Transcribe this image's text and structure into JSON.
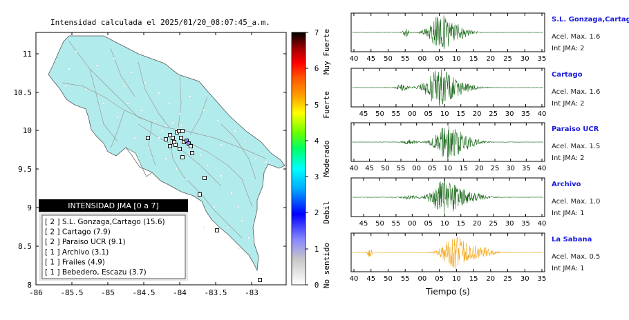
{
  "map": {
    "title": "Intensidad calculada el 2025/01/20_08:07:45_a.m.",
    "x_ticks": [
      "-86",
      "-85.5",
      "-85",
      "-84.5",
      "-84",
      "-83.5",
      "-83"
    ],
    "y_ticks": [
      "11",
      "10.5",
      "10",
      "9.5",
      "9",
      "8.5",
      "8"
    ],
    "legend_title": "INTENSIDAD JMA [0 a 7]",
    "legend_rows": [
      "[ 2 ] S.L. Gonzaga,Cartago (15.6)",
      "[ 2 ] Cartago (7.9)",
      "[ 2 ] Paraiso UCR (9.1)",
      "[ 1 ] Archivo (3.1)",
      "[ 1 ] Frailes (4.9)",
      "[ 1 ] Bebedero, Escazu (3.7)"
    ],
    "land_color": "#b2ebeb",
    "colorbar": {
      "ticks": [
        "7",
        "6",
        "5",
        "4",
        "3",
        "2",
        "1",
        "0"
      ],
      "labels": [
        "Muy Fuerte",
        "Fuerte",
        "Moderado",
        "Debil",
        "No sentido"
      ]
    }
  },
  "waveforms": {
    "x_label": "Tiempo (s)",
    "panels": [
      {
        "name": "S.L. Gonzaga,Cartago",
        "acel": "Acel. Max. 1.6",
        "int": "Int JMA: 2",
        "color": "#1e6b1e",
        "ticks": [
          "40",
          "45",
          "50",
          "55",
          "00",
          "05",
          "10",
          "15",
          "20",
          "25",
          "30",
          "35"
        ]
      },
      {
        "name": "Cartago",
        "acel": "Acel. Max. 1.6",
        "int": "Int JMA: 2",
        "color": "#1e6b1e",
        "ticks": [
          "45",
          "50",
          "55",
          "00",
          "05",
          "10",
          "15",
          "20",
          "25",
          "30",
          "35",
          "40"
        ]
      },
      {
        "name": "Paraiso UCR",
        "acel": "Acel. Max. 1.5",
        "int": "Int JMA: 2",
        "color": "#1e6b1e",
        "ticks": [
          "40",
          "45",
          "50",
          "55",
          "00",
          "05",
          "10",
          "15",
          "20",
          "25",
          "30",
          "35",
          "40"
        ]
      },
      {
        "name": "Archivo",
        "acel": "Acel. Max. 1.0",
        "int": "Int JMA: 1",
        "color": "#1e6b1e",
        "ticks": [
          "45",
          "50",
          "55",
          "00",
          "05",
          "10",
          "15",
          "20",
          "25",
          "30",
          "35",
          "40"
        ]
      },
      {
        "name": "La Sabana",
        "acel": "Acel. Max. 0.5",
        "int": "Int JMA: 1",
        "color": "#f2a516",
        "ticks": [
          "40",
          "45",
          "50",
          "55",
          "00",
          "05",
          "10",
          "15",
          "20",
          "25",
          "30",
          "35"
        ]
      }
    ]
  }
}
